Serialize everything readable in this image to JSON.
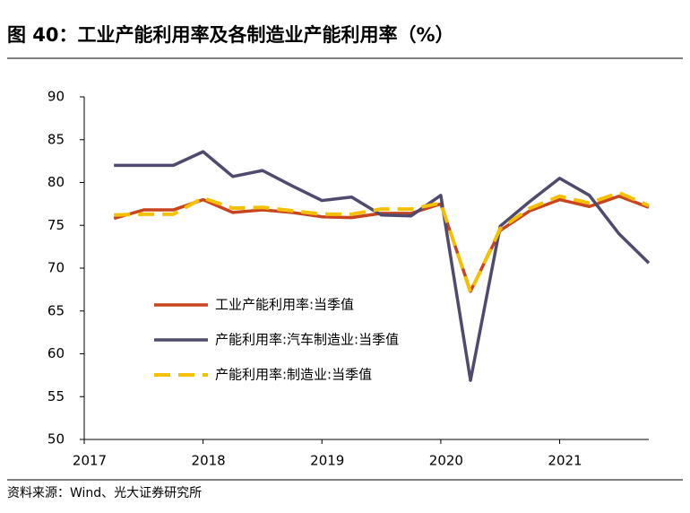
{
  "title": "图 40：工业产能利用率及各制造业产能利用率（%）",
  "source": "资料来源：Wind、光大证券研究所",
  "chart_data": {
    "type": "line",
    "x": [
      2017.25,
      2017.5,
      2017.75,
      2018.0,
      2018.25,
      2018.5,
      2018.75,
      2019.0,
      2019.25,
      2019.5,
      2019.75,
      2020.0,
      2020.25,
      2020.5,
      2020.75,
      2021.0,
      2021.25,
      2021.5,
      2021.75
    ],
    "xlim": [
      2017,
      2021.75
    ],
    "xticks": [
      2017,
      2018,
      2019,
      2020,
      2021
    ],
    "ylim": [
      50,
      90
    ],
    "yticks": [
      50,
      55,
      60,
      65,
      70,
      75,
      80,
      85,
      90
    ],
    "series": [
      {
        "name": "工业产能利用率:当季值",
        "color": "#c8441f",
        "dash": false,
        "values": [
          75.8,
          76.8,
          76.8,
          78.0,
          76.5,
          76.8,
          76.5,
          76.0,
          75.9,
          76.4,
          76.4,
          77.5,
          67.3,
          74.4,
          76.7,
          78.0,
          77.2,
          78.4,
          77.1
        ]
      },
      {
        "name": "产能利用率:汽车制造业:当季值",
        "color": "#4f4b6e",
        "dash": false,
        "values": [
          82.0,
          82.0,
          82.0,
          83.6,
          80.7,
          81.4,
          79.6,
          77.9,
          78.3,
          76.2,
          76.1,
          78.5,
          56.9,
          74.9,
          77.8,
          80.5,
          78.5,
          74.0,
          70.6
        ]
      },
      {
        "name": "产能利用率:制造业:当季值",
        "color": "#f5c000",
        "dash": true,
        "values": [
          76.2,
          76.3,
          76.3,
          78.2,
          77.0,
          77.1,
          76.7,
          76.3,
          76.3,
          76.9,
          76.9,
          77.6,
          67.2,
          74.6,
          77.0,
          78.4,
          77.6,
          78.8,
          77.3
        ]
      }
    ]
  }
}
